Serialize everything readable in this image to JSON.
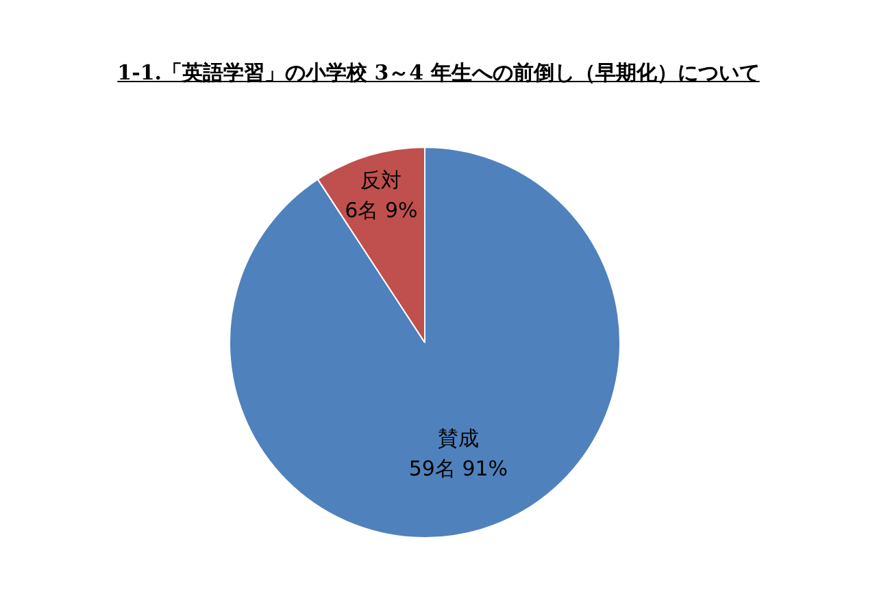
{
  "chart_data": {
    "type": "pie",
    "title": "1-1.「英語学習」の小学校 3～4 年生への前倒し（早期化）について",
    "categories": [
      "賛成",
      "反対"
    ],
    "values": [
      59,
      6
    ],
    "value_labels": [
      "59名 91%",
      "6名 9%"
    ],
    "colors": [
      "#4f81bd",
      "#c0504d"
    ],
    "legend": false
  }
}
